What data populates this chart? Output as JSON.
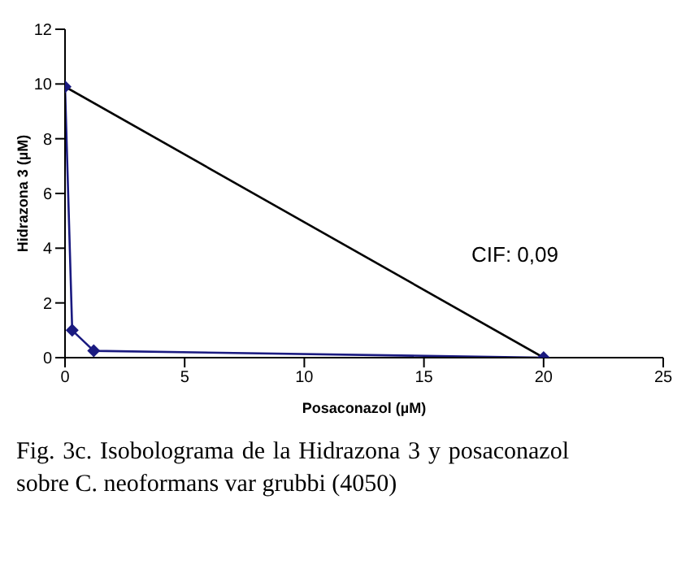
{
  "chart_data": {
    "type": "line",
    "xlabel": "Posaconazol (µM)",
    "ylabel": "Hidrazona 3 (µM)",
    "xlim": [
      0,
      25
    ],
    "xticks": [
      0,
      5,
      10,
      15,
      20,
      25
    ],
    "ylim": [
      0,
      12
    ],
    "yticks": [
      0,
      2,
      4,
      6,
      8,
      10,
      12
    ],
    "grid": false,
    "line_style": "solid",
    "series": [
      {
        "color": "#000000",
        "x": [
          0,
          20
        ],
        "values": [
          9.9,
          0
        ],
        "marker": "none"
      },
      {
        "color": "#1a1a80",
        "x": [
          0,
          0.3,
          1.2,
          20
        ],
        "values": [
          9.9,
          1,
          0.25,
          0
        ],
        "marker": "diamond"
      }
    ],
    "annotations": [
      "CIF: 0,09",
      "Fig. 3c. Isobolograma de la Hidrazona 3 y posaconazol sobre C. neoformans var grubbi (4050)"
    ]
  }
}
